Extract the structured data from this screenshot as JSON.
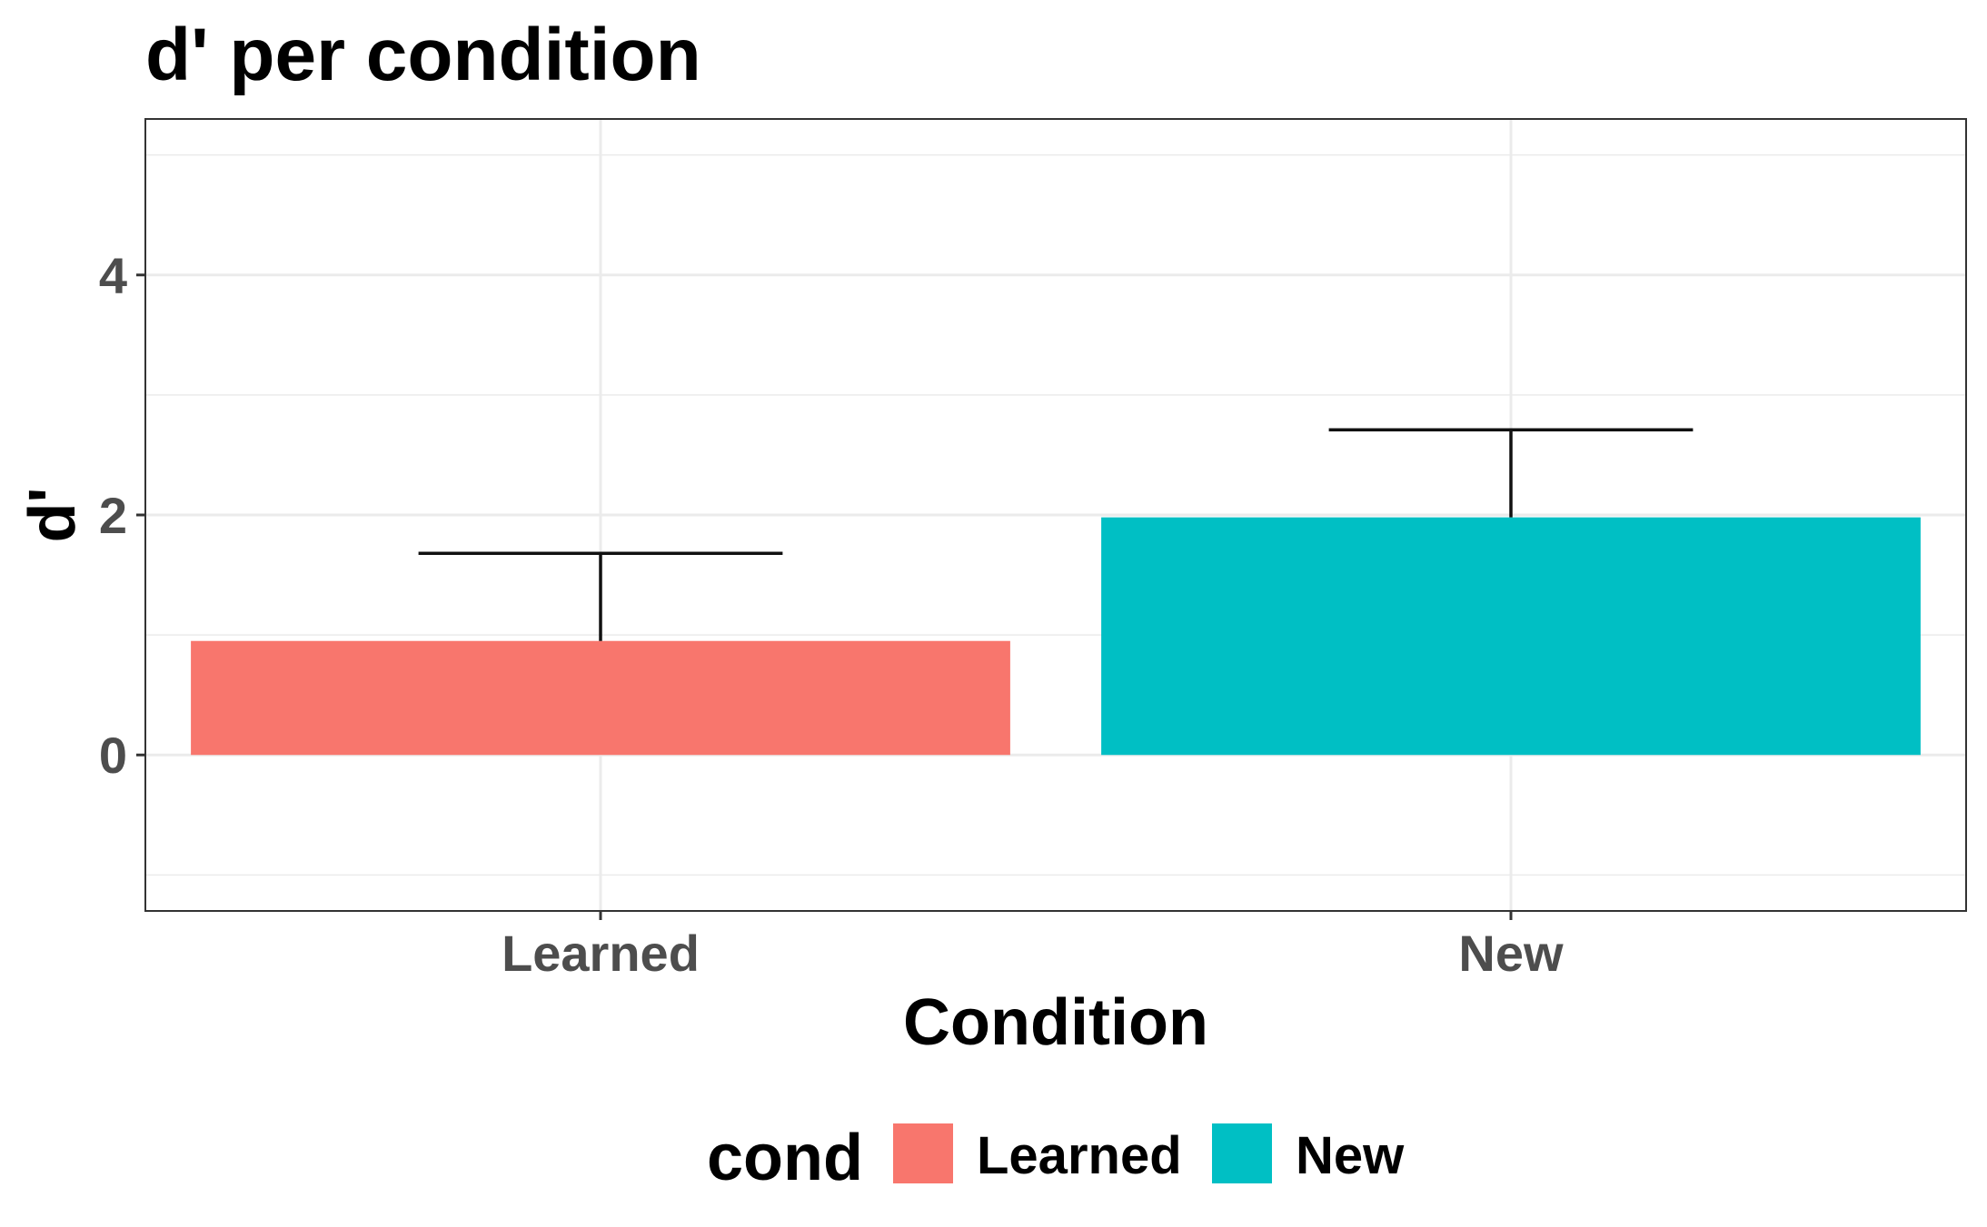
{
  "chart_data": {
    "type": "bar",
    "title": "d' per condition",
    "xlabel": "Condition",
    "ylabel": "d'",
    "categories": [
      "Learned",
      "New"
    ],
    "values": [
      0.95,
      1.98
    ],
    "error_upper": [
      1.68,
      2.71
    ],
    "colors": [
      "#F8766D",
      "#00BFC4"
    ],
    "ylim": [
      -1.3,
      5.3
    ],
    "yticks": [
      0,
      2,
      4
    ],
    "grid": true,
    "legend": {
      "title": "cond",
      "position": "bottom",
      "entries": [
        {
          "label": "Learned",
          "color": "#F8766D"
        },
        {
          "label": "New",
          "color": "#00BFC4"
        }
      ]
    }
  }
}
